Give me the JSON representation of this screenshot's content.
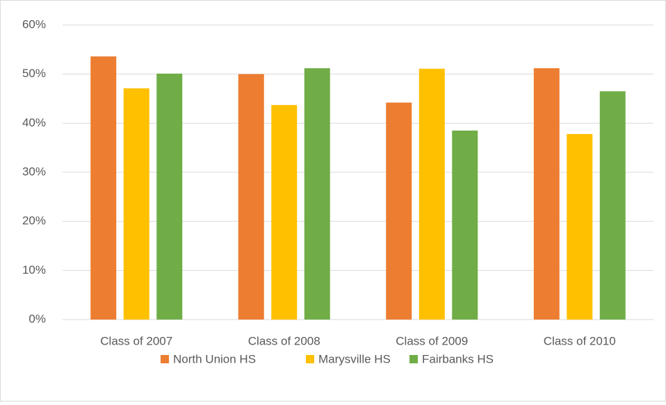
{
  "chart_data": {
    "type": "bar",
    "categories": [
      "Class of 2007",
      "Class of 2008",
      "Class of 2009",
      "Class of 2010"
    ],
    "series": [
      {
        "name": "North Union HS",
        "color": "#ed7d31",
        "values": [
          53.6,
          50.0,
          44.2,
          51.2
        ]
      },
      {
        "name": "Marysville HS",
        "color": "#ffc000",
        "values": [
          47.1,
          43.7,
          51.1,
          37.8
        ]
      },
      {
        "name": "Fairbanks HS",
        "color": "#70ad47",
        "values": [
          50.1,
          51.2,
          38.5,
          46.5
        ]
      }
    ],
    "ylim": [
      0,
      60
    ],
    "yticks": [
      {
        "value": 0,
        "label": "0%"
      },
      {
        "value": 10,
        "label": "10%"
      },
      {
        "value": 20,
        "label": "20%"
      },
      {
        "value": 30,
        "label": "30%"
      },
      {
        "value": 40,
        "label": "40%"
      },
      {
        "value": 50,
        "label": "50%"
      },
      {
        "value": 60,
        "label": "60%"
      }
    ],
    "grid": true,
    "legend": "bottom"
  }
}
